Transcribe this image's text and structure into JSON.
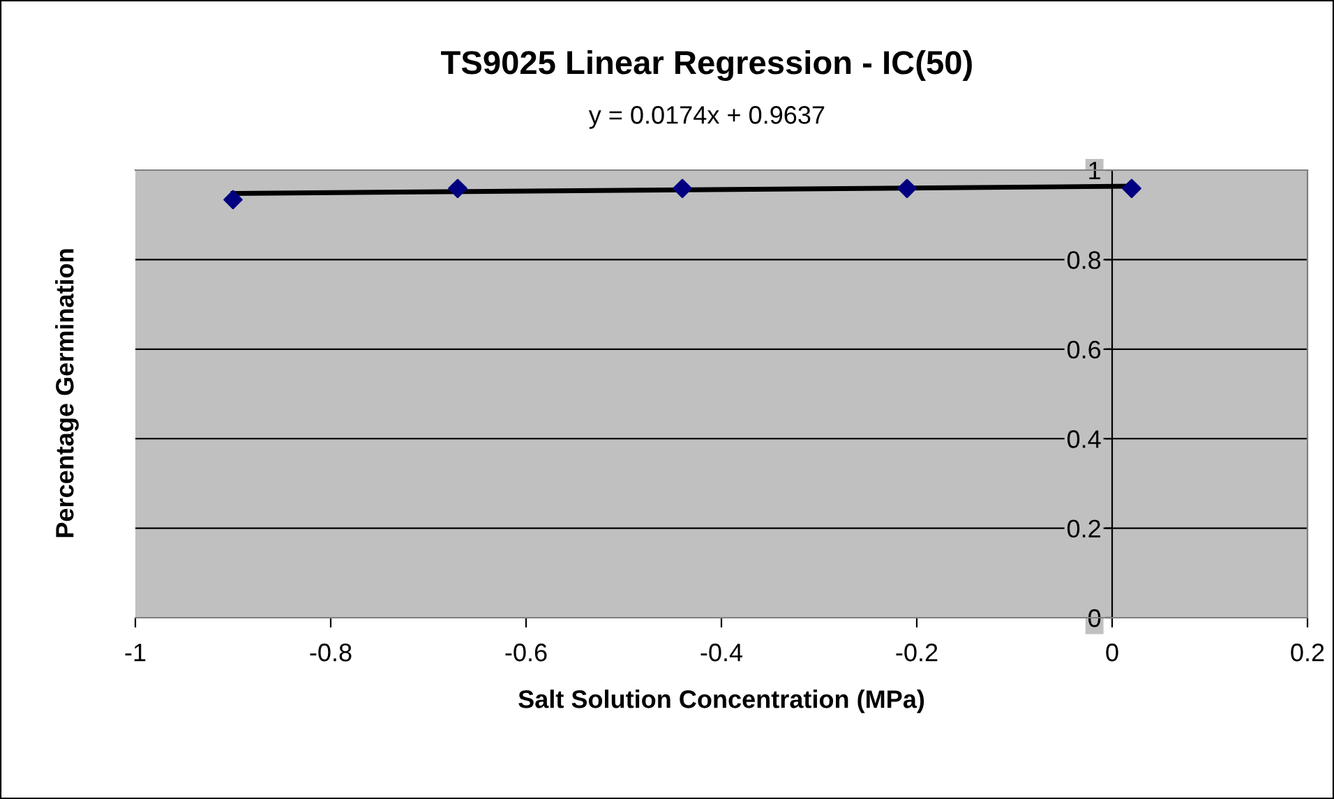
{
  "chart_data": {
    "type": "scatter",
    "title": "TS9025 Linear Regression - IC(50)",
    "subtitle": "y = 0.0174x + 0.9637",
    "xlabel": "Salt Solution Concentration (MPa)",
    "ylabel": "Percentage Germination",
    "x": [
      -0.9,
      -0.67,
      -0.44,
      -0.21,
      0.02
    ],
    "series": [
      {
        "color": "#000080",
        "values": [
          0.934,
          0.959,
          0.959,
          0.959,
          0.959
        ],
        "marker": "diamond"
      },
      {
        "type": "line",
        "color": "#000000",
        "x": [
          -0.9,
          0.02
        ],
        "values": [
          0.948,
          0.964
        ],
        "marker": "none"
      }
    ],
    "xlim": [
      -1,
      0.2
    ],
    "xticks": [
      -1,
      -0.8,
      -0.6,
      -0.4,
      -0.2,
      0,
      0.2
    ],
    "ylim": [
      0,
      1
    ],
    "yticks": [
      0,
      0.2,
      0.4,
      0.6,
      0.8,
      1
    ],
    "grid": "y",
    "legend": false
  }
}
